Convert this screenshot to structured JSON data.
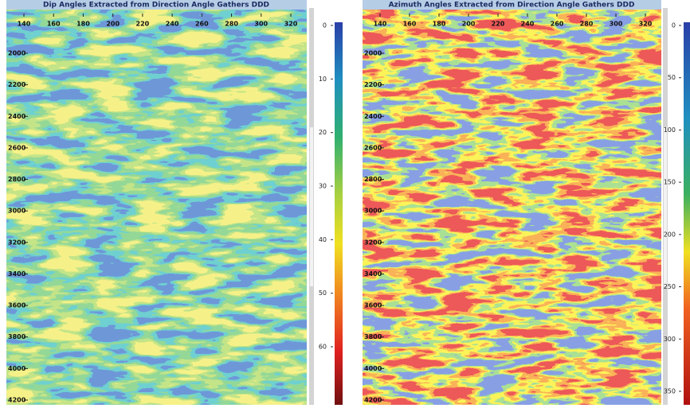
{
  "panels": [
    {
      "title": "Dip Angles Extracted from Direction Angle Gathers DDD",
      "xticks": [
        140,
        160,
        180,
        200,
        220,
        240,
        260,
        280,
        300,
        320
      ],
      "yticks": [
        2000,
        2200,
        2400,
        2600,
        2800,
        3000,
        3200,
        3400,
        3600,
        3800,
        4000,
        4200
      ],
      "colorbar_ticks": [
        0,
        10,
        20,
        30,
        40,
        50,
        60
      ]
    },
    {
      "title": "Azimuth Angles Extracted from Direction Angle Gathers DDD",
      "xticks": [
        140,
        160,
        180,
        200,
        220,
        240,
        260,
        280,
        300,
        320
      ],
      "yticks": [
        2000,
        2200,
        2400,
        2600,
        2800,
        3000,
        3200,
        3400,
        3600,
        3800,
        4000,
        4200
      ],
      "colorbar_ticks": [
        0,
        50,
        100,
        150,
        200,
        250,
        300,
        350
      ]
    }
  ]
}
